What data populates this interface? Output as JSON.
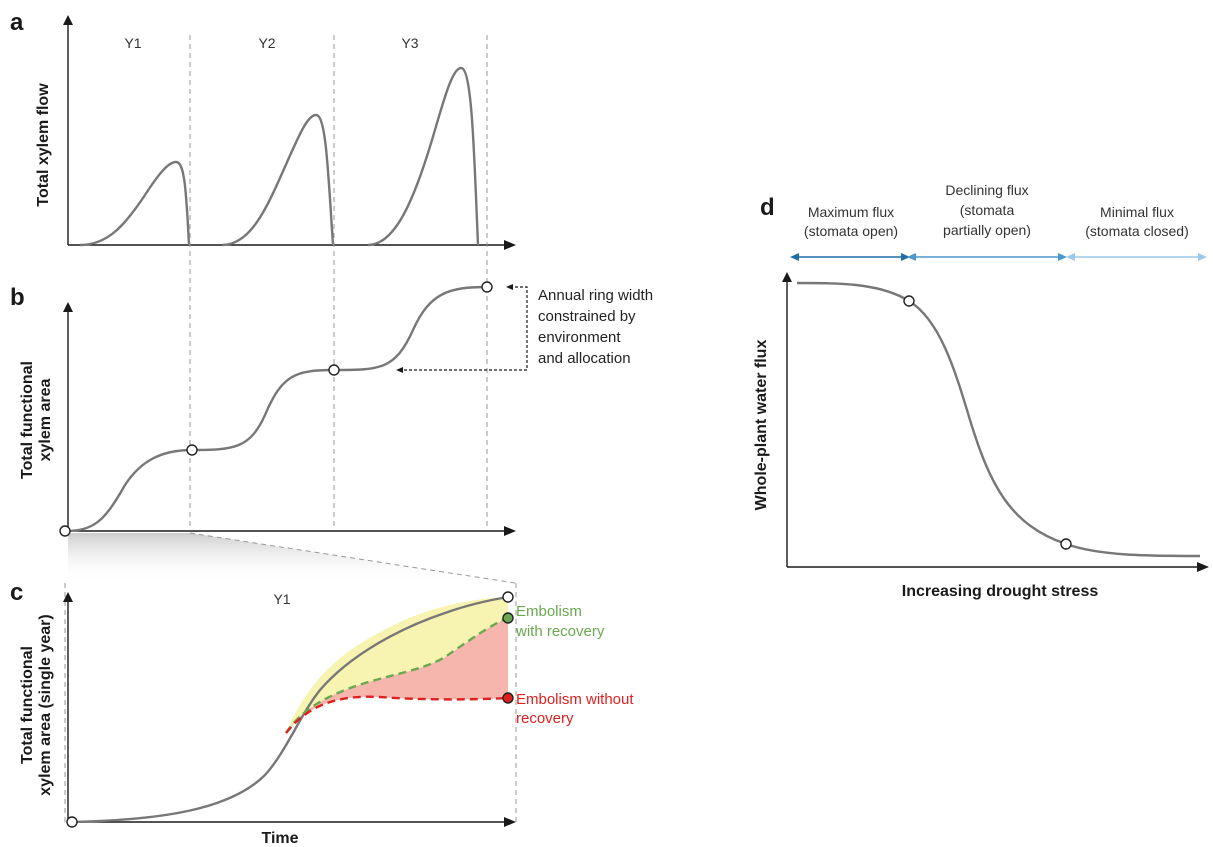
{
  "colors": {
    "curve": "#777777",
    "recovery": "#6aa84f",
    "no_recovery": "#e02020",
    "yellow_fill": "#f6f4b0",
    "red_fill": "#f7b6ad",
    "arrow_dark": "#1f6ea8",
    "arrow_mid": "#4a98cf",
    "arrow_light": "#9cc9e8"
  },
  "panel_a": {
    "label": "a",
    "ylabel": "Total xylem flow",
    "years": [
      "Y1",
      "Y2",
      "Y3"
    ]
  },
  "panel_b": {
    "label": "b",
    "ylabel_line1": "Total functional",
    "ylabel_line2": "xylem area",
    "annotation": [
      "Annual ring width",
      "constrained by",
      "environment",
      "and allocation"
    ]
  },
  "panel_c": {
    "label": "c",
    "ylabel_line1": "Total functional",
    "ylabel_line2": "xylem area (single year)",
    "xlabel": "Time",
    "year": "Y1",
    "recovery_label": [
      "Embolism",
      "with recovery"
    ],
    "no_recovery_label": [
      "Embolism without",
      "recovery"
    ]
  },
  "panel_d": {
    "label": "d",
    "ylabel": "Whole-plant water flux",
    "xlabel": "Increasing drought stress",
    "zones": [
      {
        "lines": [
          "Maximum flux",
          "(stomata open)"
        ],
        "color": "#1f6ea8"
      },
      {
        "lines": [
          "Declining flux",
          "(stomata",
          "partially open)"
        ],
        "color": "#4a98cf"
      },
      {
        "lines": [
          "Minimal flux",
          "(stomata closed)"
        ],
        "color": "#9cc9e8"
      }
    ]
  }
}
